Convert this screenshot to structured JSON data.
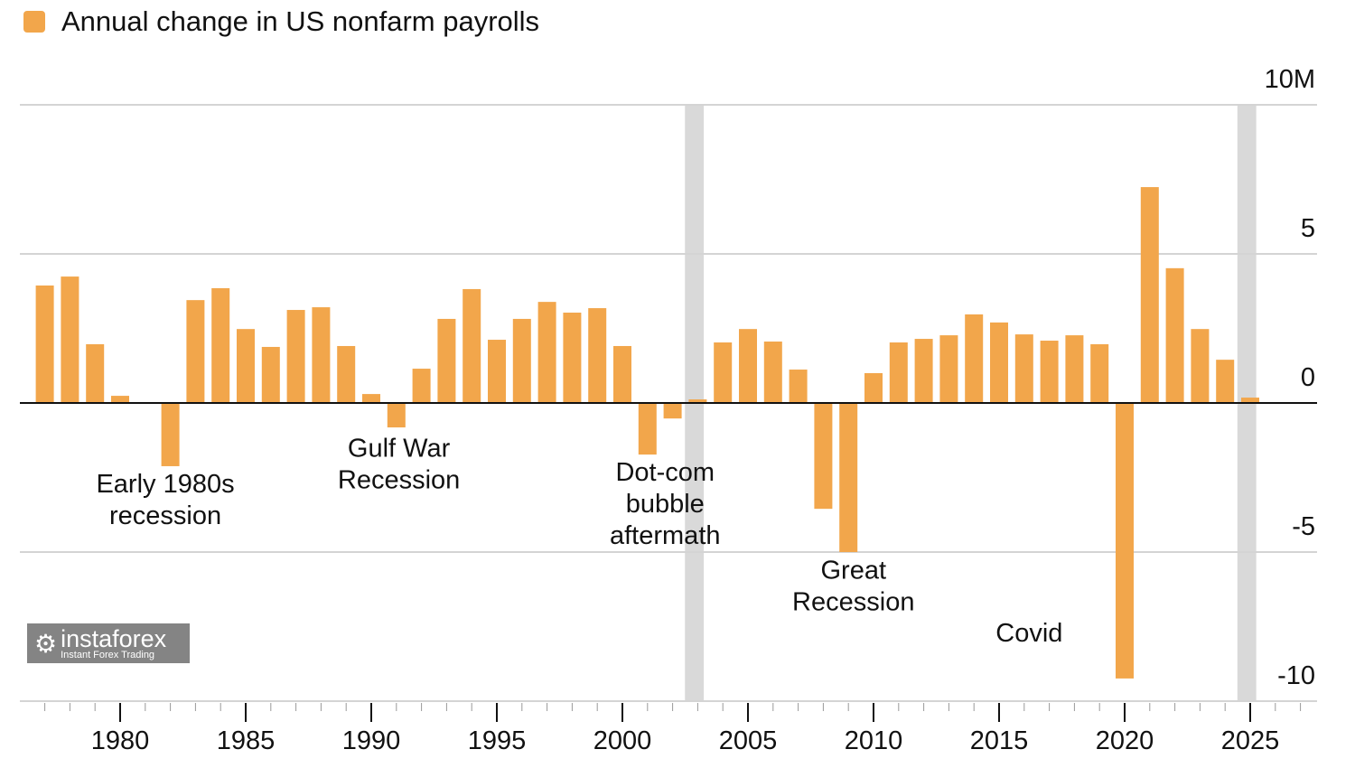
{
  "chart_data": {
    "type": "bar",
    "title": "Annual change in US nonfarm payrolls",
    "unit_label": "10M",
    "legend": [
      {
        "name": "Annual change in US nonfarm payrolls",
        "color": "#F2A64B"
      }
    ],
    "legend_placement": "top-left",
    "x": [
      1977,
      1978,
      1979,
      1980,
      1981,
      1982,
      1983,
      1984,
      1985,
      1986,
      1987,
      1988,
      1989,
      1990,
      1991,
      1992,
      1993,
      1994,
      1995,
      1996,
      1997,
      1998,
      1999,
      2000,
      2001,
      2002,
      2003,
      2004,
      2005,
      2006,
      2007,
      2008,
      2009,
      2010,
      2011,
      2012,
      2013,
      2014,
      2015,
      2016,
      2017,
      2018,
      2019,
      2020,
      2021,
      2022,
      2023,
      2024,
      2025
    ],
    "values": [
      3.94,
      4.24,
      1.97,
      0.24,
      0.03,
      -2.12,
      3.45,
      3.85,
      2.48,
      1.88,
      3.12,
      3.21,
      1.91,
      0.3,
      -0.82,
      1.15,
      2.82,
      3.82,
      2.12,
      2.82,
      3.39,
      3.03,
      3.18,
      1.91,
      -1.73,
      -0.52,
      0.12,
      2.03,
      2.48,
      2.06,
      1.12,
      -3.55,
      -5.0,
      1.0,
      2.03,
      2.15,
      2.27,
      2.97,
      2.7,
      2.3,
      2.09,
      2.27,
      1.97,
      -9.24,
      7.24,
      4.52,
      2.48,
      1.45,
      0.18
    ],
    "ylim": [
      -10,
      10
    ],
    "yticks": [
      {
        "v": 10,
        "label": "10M"
      },
      {
        "v": 5,
        "label": "5"
      },
      {
        "v": 0,
        "label": "0"
      },
      {
        "v": -5,
        "label": "-5"
      },
      {
        "v": -10,
        "label": "-10"
      }
    ],
    "xticks": [
      1980,
      1985,
      1990,
      1995,
      2000,
      2005,
      2010,
      2015,
      2020,
      2025
    ],
    "shaded_periods": [
      [
        2002.85,
        2003.6
      ],
      [
        2024.85,
        2025.6
      ]
    ],
    "grid": true,
    "annotations": [
      {
        "lines": [
          "Early 1980s",
          "recession"
        ],
        "year": 1981.8,
        "value": -3.0
      },
      {
        "lines": [
          "Gulf War",
          "Recession"
        ],
        "year": 1991.1,
        "value": -1.8
      },
      {
        "lines": [
          "Dot-com",
          "bubble",
          "aftermath"
        ],
        "year": 2001.7,
        "value": -2.6
      },
      {
        "lines": [
          "Great",
          "Recession"
        ],
        "year": 2009.2,
        "value": -5.9
      },
      {
        "lines": [
          "Covid"
        ],
        "year": 2016.2,
        "value": -8.0
      }
    ],
    "bar_color": "#F2A64B",
    "shade_color": "#D9D9D9"
  },
  "watermark": {
    "brand": "instaforex",
    "tagline": "Instant Forex Trading"
  }
}
